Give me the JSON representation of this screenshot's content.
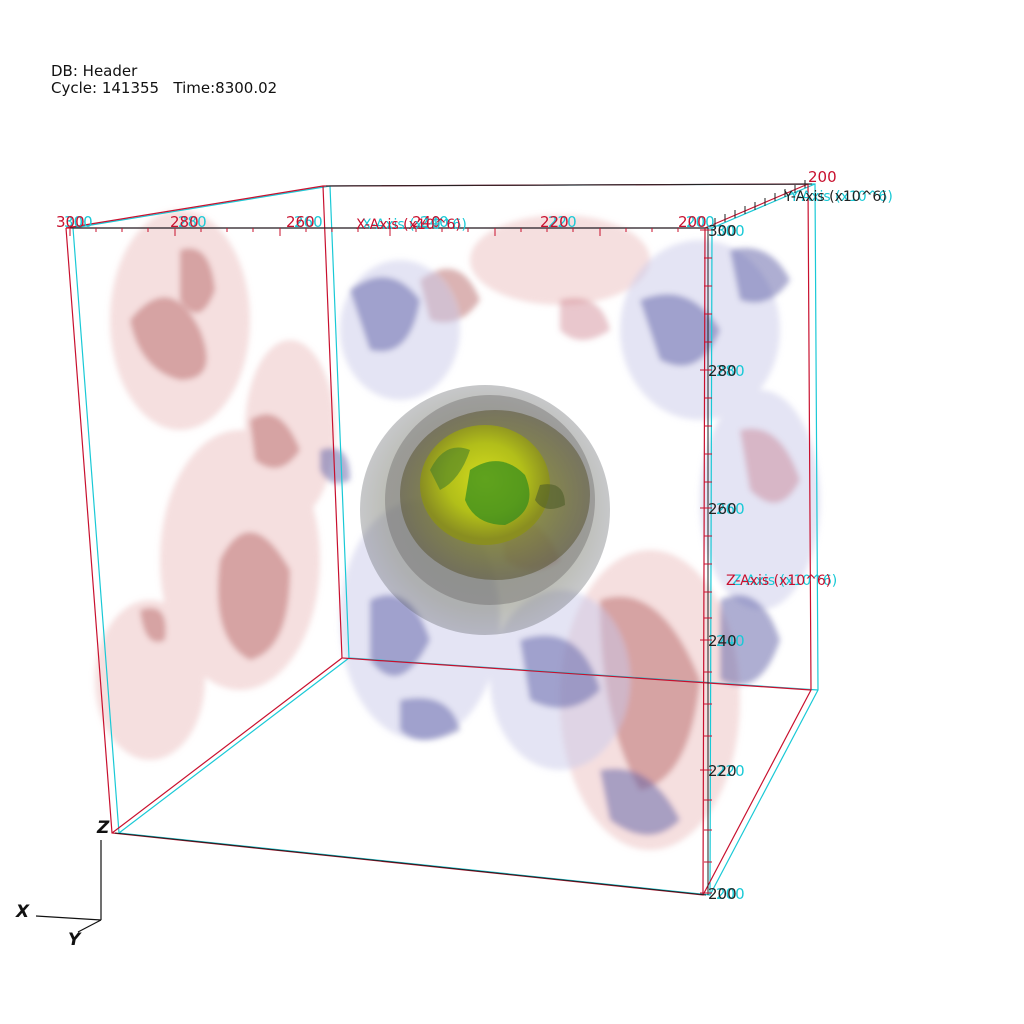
{
  "header": {
    "db_label": "DB: Header",
    "cycle_label": "Cycle: 141355",
    "time_label": "Time:8300.02"
  },
  "axes": {
    "x_title": "X-Axis (x10^6)",
    "z_title": "Z-Axis (x10^6)",
    "y_title": "Y-Axis (x10^6)",
    "x_ticks": [
      "300",
      "280",
      "260",
      "240",
      "220",
      "200"
    ],
    "z_ticks": [
      "300",
      "280",
      "260",
      "240",
      "220",
      "200"
    ],
    "y_tick_top": "200"
  },
  "triad": {
    "x": "X",
    "y": "Y",
    "z": "Z"
  },
  "colors": {
    "stereo_left": "#c8102e",
    "stereo_right": "#19c9d6",
    "core": "#9aa800"
  }
}
